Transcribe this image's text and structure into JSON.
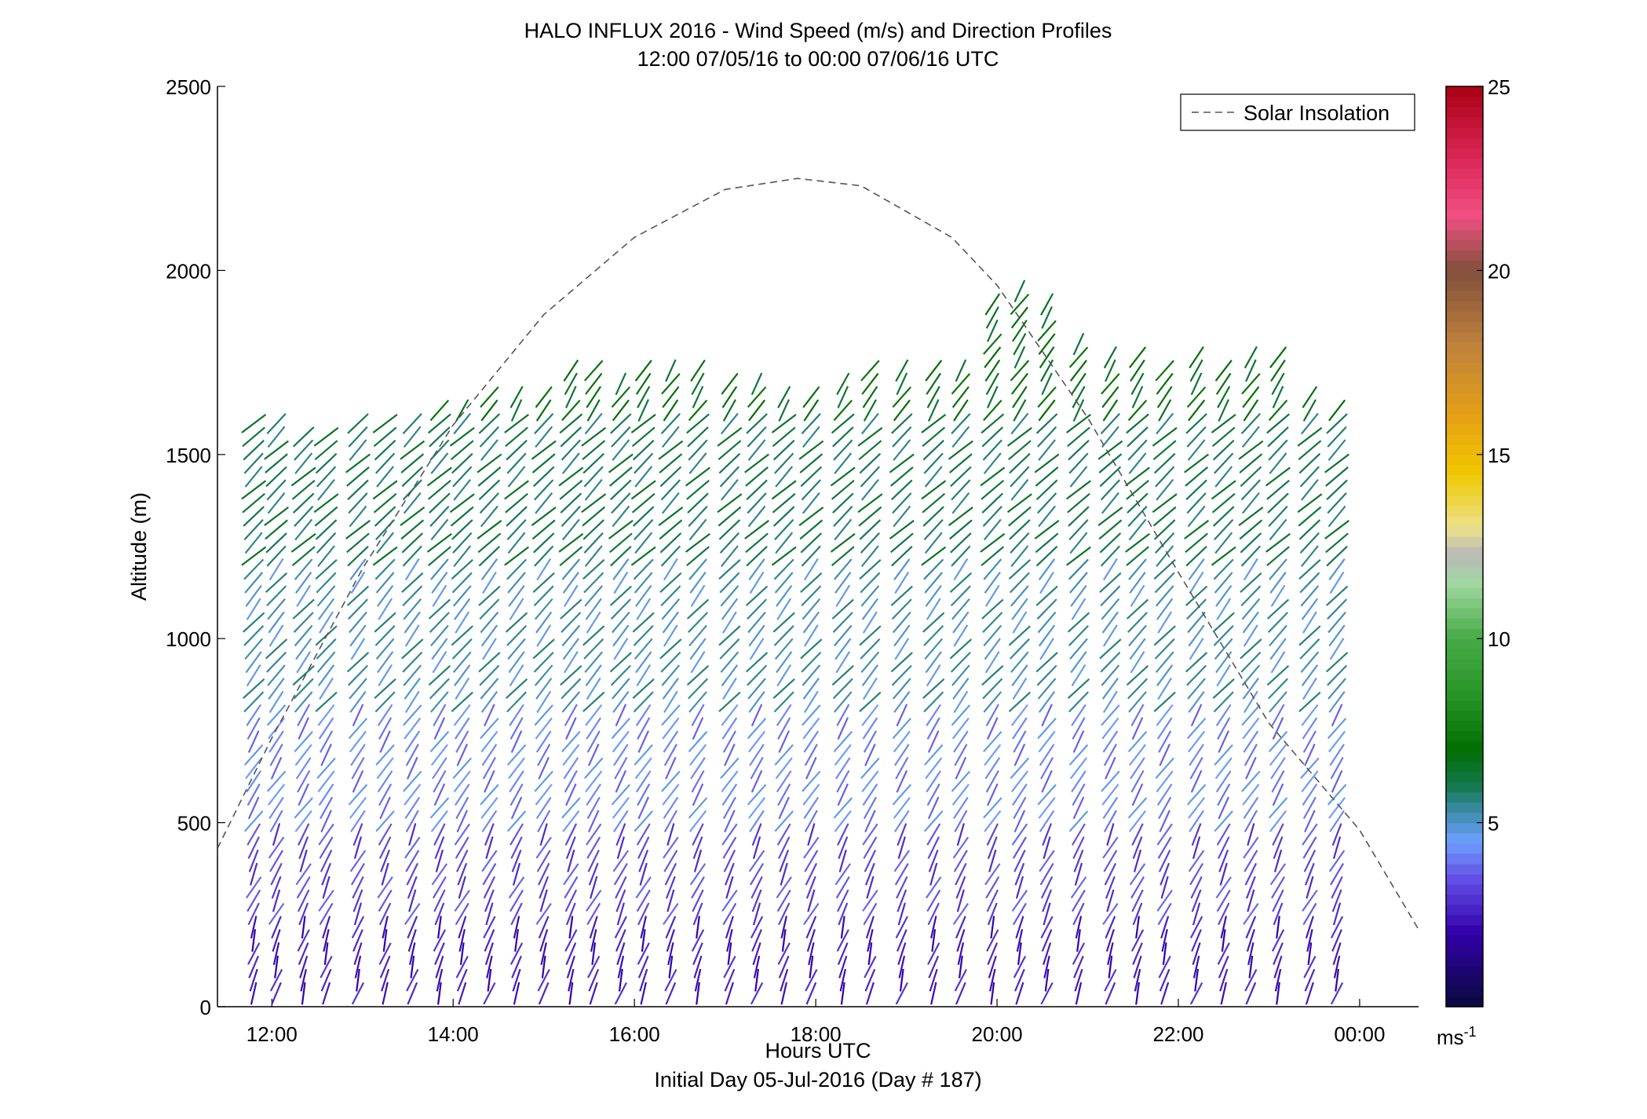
{
  "chart_data": {
    "type": "wind-barb-profile",
    "title": "HALO INFLUX 2016 - Wind Speed (m/s) and Direction Profiles",
    "subtitle": "12:00 07/05/16 to 00:00 07/06/16  UTC",
    "xlabel": "Hours UTC",
    "xlabel2": "Initial Day 05-Jul-2016 (Day # 187)",
    "ylabel": "Altitude (m)",
    "xlim": [
      11.4,
      24.65
    ],
    "ylim": [
      0,
      2500
    ],
    "x_ticks": [
      12,
      14,
      16,
      18,
      20,
      22,
      24
    ],
    "x_tick_labels": [
      "12:00",
      "14:00",
      "16:00",
      "18:00",
      "20:00",
      "22:00",
      "00:00"
    ],
    "y_ticks": [
      0,
      500,
      1000,
      1500,
      2000,
      2500
    ],
    "y_tick_labels": [
      "0",
      "500",
      "1000",
      "1500",
      "2000",
      "2500"
    ],
    "legend": {
      "label": "Solar Insolation",
      "placement": "top-right"
    },
    "colorbar": {
      "range": [
        0,
        25
      ],
      "ticks": [
        5,
        10,
        15,
        20,
        25
      ],
      "tick_labels": [
        "5",
        "10",
        "15",
        "20",
        "25"
      ],
      "unit_label": "ms",
      "unit_exponent": "-1"
    },
    "solar_insolation_curve": {
      "x": [
        11.4,
        12.0,
        13.0,
        14.0,
        15.0,
        16.0,
        17.0,
        17.8,
        18.5,
        19.5,
        20.0,
        21.0,
        22.0,
        23.0,
        24.0,
        24.65
      ],
      "y": [
        430,
        730,
        1190,
        1580,
        1880,
        2090,
        2220,
        2250,
        2230,
        2090,
        1960,
        1600,
        1180,
        770,
        480,
        210
      ]
    },
    "profile_times": [
      11.8,
      12.05,
      12.35,
      12.6,
      12.95,
      13.25,
      13.55,
      13.85,
      14.1,
      14.4,
      14.7,
      15.0,
      15.3,
      15.55,
      15.85,
      16.1,
      16.4,
      16.7,
      17.05,
      17.35,
      17.65,
      17.95,
      18.3,
      18.6,
      18.95,
      19.3,
      19.6,
      19.95,
      20.25,
      20.55,
      20.9,
      21.25,
      21.55,
      21.85,
      22.2,
      22.5,
      22.8,
      23.1,
      23.45,
      23.75
    ],
    "profile_top_altitude": [
      1600,
      1590,
      1580,
      1560,
      1590,
      1590,
      1600,
      1630,
      1640,
      1660,
      1670,
      1690,
      1760,
      1730,
      1710,
      1730,
      1740,
      1730,
      1720,
      1710,
      1680,
      1690,
      1710,
      1740,
      1760,
      1760,
      1740,
      1920,
      1950,
      1910,
      1820,
      1780,
      1770,
      1760,
      1770,
      1760,
      1780,
      1770,
      1660,
      1650
    ],
    "vertical_spacing_m": 36,
    "speed_layers": [
      {
        "alt_from": 0,
        "alt_to": 250,
        "speed": 2.5,
        "dir_deg": 280
      },
      {
        "alt_from": 250,
        "alt_to": 500,
        "speed": 3.3,
        "dir_deg": 285
      },
      {
        "alt_from": 500,
        "alt_to": 800,
        "speed": 4.2,
        "dir_deg": 290
      },
      {
        "alt_from": 800,
        "alt_to": 1200,
        "speed": 5.2,
        "dir_deg": 295
      },
      {
        "alt_from": 1200,
        "alt_to": 1600,
        "speed": 6.0,
        "dir_deg": 300
      },
      {
        "alt_from": 1600,
        "alt_to": 2000,
        "speed": 6.8,
        "dir_deg": 290
      }
    ]
  }
}
